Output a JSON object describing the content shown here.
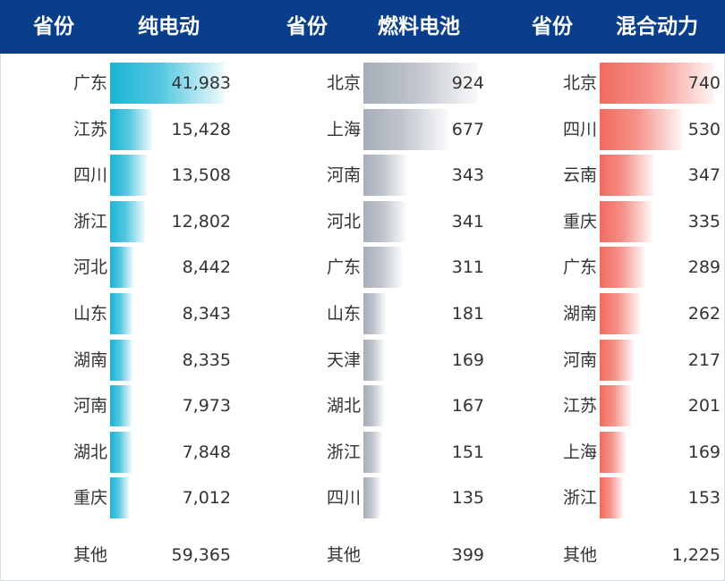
{
  "header": {
    "cols": [
      {
        "province_label": "省份",
        "metric_label": "纯电动"
      },
      {
        "province_label": "省份",
        "metric_label": "燃料电池"
      },
      {
        "province_label": "省份",
        "metric_label": "混合动力"
      }
    ]
  },
  "colors": {
    "header_bg": "#0b3e8a",
    "ev_bar": "#19b4d6",
    "fuel_cell_bar": "#a7aeb9",
    "hybrid_bar": "#f26a5e"
  },
  "chart_data": [
    {
      "type": "bar",
      "title": "纯电动",
      "xlabel": "省份",
      "categories": [
        "广东",
        "江苏",
        "四川",
        "浙江",
        "河北",
        "山东",
        "湖南",
        "河南",
        "湖北",
        "重庆"
      ],
      "values": [
        41983,
        15428,
        13508,
        12802,
        8442,
        8343,
        8335,
        7973,
        7848,
        7012
      ],
      "value_labels": [
        "41,983",
        "15,428",
        "13,508",
        "12,802",
        "8,442",
        "8,343",
        "8,335",
        "7,973",
        "7,848",
        "7,012"
      ],
      "other_label": "其他",
      "other_value": 59365,
      "other_value_label": "59,365"
    },
    {
      "type": "bar",
      "title": "燃料电池",
      "xlabel": "省份",
      "categories": [
        "北京",
        "上海",
        "河南",
        "河北",
        "广东",
        "山东",
        "天津",
        "湖北",
        "浙江",
        "四川"
      ],
      "values": [
        924,
        677,
        343,
        341,
        311,
        181,
        169,
        167,
        151,
        135
      ],
      "value_labels": [
        "924",
        "677",
        "343",
        "341",
        "311",
        "181",
        "169",
        "167",
        "151",
        "135"
      ],
      "other_label": "其他",
      "other_value": 399,
      "other_value_label": "399"
    },
    {
      "type": "bar",
      "title": "混合动力",
      "xlabel": "省份",
      "categories": [
        "北京",
        "四川",
        "云南",
        "重庆",
        "广东",
        "湖南",
        "河南",
        "江苏",
        "上海",
        "浙江"
      ],
      "values": [
        740,
        530,
        347,
        335,
        289,
        262,
        217,
        201,
        169,
        153
      ],
      "value_labels": [
        "740",
        "530",
        "347",
        "335",
        "289",
        "262",
        "217",
        "201",
        "169",
        "153"
      ],
      "other_label": "其他",
      "other_value": 1225,
      "other_value_label": "1,225"
    }
  ]
}
